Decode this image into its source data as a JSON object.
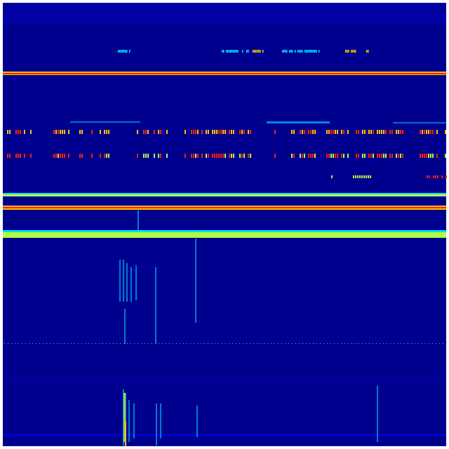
{
  "chart_data": {
    "type": "heatmap",
    "colormap": "jet",
    "title": "",
    "xlabel": "",
    "ylabel": "",
    "grid": false,
    "colors": {
      "background": "#00008f",
      "low": "#0000c8",
      "mid": "#00e0ff",
      "high_mid": "#b0ff40",
      "high": "#ffc000",
      "max": "#ff2000"
    }
  }
}
